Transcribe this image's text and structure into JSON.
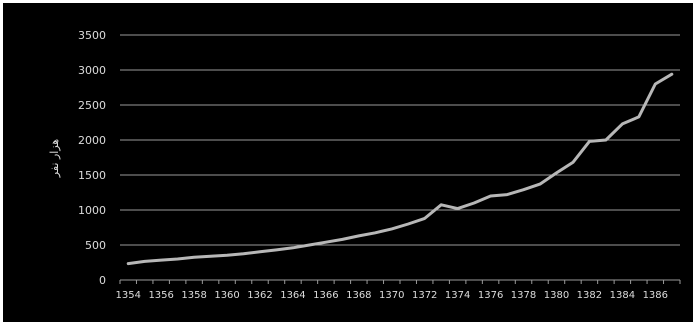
{
  "chart_data": {
    "type": "line",
    "title": "",
    "ylabel": "هزار نفر",
    "xlabel": "",
    "ylim": [
      0,
      3500
    ],
    "y_ticks": [
      "0",
      "500",
      "1000",
      "1500",
      "2000",
      "2500",
      "3000",
      "3500"
    ],
    "x_tick_labels": [
      "1354",
      "1356",
      "1358",
      "1360",
      "1362",
      "1364",
      "1366",
      "1368",
      "1370",
      "1372",
      "1374",
      "1376",
      "1378",
      "1380",
      "1382",
      "1384",
      "1386"
    ],
    "grid": true,
    "legend": "none",
    "series": [
      {
        "x": [
          1354,
          1355,
          1356,
          1357,
          1358,
          1359,
          1360,
          1361,
          1362,
          1363,
          1364,
          1365,
          1366,
          1367,
          1368,
          1369,
          1370,
          1371,
          1372,
          1373,
          1374,
          1375,
          1376,
          1377,
          1378,
          1379,
          1380,
          1381,
          1382,
          1383,
          1384,
          1385,
          1386,
          1387
        ],
        "values": [
          235,
          265,
          285,
          300,
          325,
          340,
          355,
          375,
          405,
          430,
          460,
          500,
          540,
          580,
          630,
          675,
          730,
          800,
          880,
          1075,
          1020,
          1100,
          1200,
          1220,
          1290,
          1370,
          1530,
          1680,
          1980,
          2000,
          2230,
          2330,
          2800,
          2940
        ]
      }
    ],
    "colors": {
      "background": "#000000",
      "line": "#b7b7b7",
      "grid": "#9a9a9a",
      "text": "#dcdcdc",
      "frame": "#ffffff"
    }
  }
}
